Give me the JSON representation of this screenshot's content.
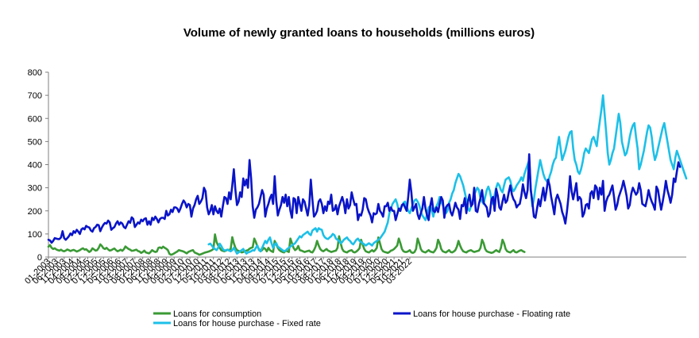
{
  "chart_data": {
    "type": "line",
    "title": "Volume of newly granted loans to households (millions euros)",
    "xlabel": "",
    "ylabel": "",
    "ylim": [
      0,
      800
    ],
    "yticks": [
      0,
      100,
      200,
      300,
      400,
      500,
      600,
      700,
      800
    ],
    "grid": false,
    "legend_position": "bottom",
    "x_tick_labels": [
      "01-2003",
      "06-2003",
      "11-2003",
      "04-2004",
      "09-2004",
      "02-2005",
      "07-2005",
      "12-2005",
      "05-2006",
      "10-2006",
      "03-2007",
      "08-2007",
      "01-2008",
      "06-2008",
      "11-2008",
      "04-2009",
      "09-2009",
      "02-2010",
      "07-2010",
      "12-2010",
      "05-2011",
      "10-2011",
      "03-2012",
      "08-2012",
      "01-2013",
      "06-2013",
      "11-2013",
      "04-2014",
      "09-2014",
      "02-2015",
      "07-2015",
      "12-2015",
      "05-2016",
      "10-2016",
      "03-2017",
      "08-2017",
      "01-2018",
      "06-2018",
      "11-2018",
      "04-2019",
      "09-2019",
      "02-2020",
      "07-2020",
      "12-2020",
      "05-2021",
      "10-2021",
      "03-2022"
    ],
    "series": [
      {
        "name": "Loans for consumption",
        "color": "#3a9a35",
        "start": 0,
        "values": [
          45,
          52,
          40,
          35,
          38,
          33,
          30,
          28,
          32,
          27,
          25,
          28,
          33,
          30,
          26,
          29,
          31,
          28,
          24,
          27,
          30,
          35,
          38,
          32,
          34,
          28,
          22,
          27,
          38,
          33,
          28,
          30,
          40,
          55,
          48,
          38,
          35,
          40,
          33,
          28,
          30,
          34,
          37,
          30,
          25,
          28,
          32,
          27,
          34,
          46,
          40,
          35,
          32,
          27,
          28,
          30,
          32,
          26,
          24,
          18,
          22,
          28,
          20,
          18,
          16,
          22,
          30,
          25,
          22,
          24,
          40,
          42,
          38,
          45,
          40,
          36,
          30,
          14,
          10,
          12,
          16,
          20,
          24,
          30,
          28,
          26,
          24,
          20,
          16,
          22,
          25,
          28,
          30,
          20,
          17,
          14,
          10,
          12,
          15,
          18,
          20,
          22,
          24,
          27,
          30,
          35,
          98,
          65,
          50,
          40,
          30,
          27,
          25,
          28,
          32,
          30,
          35,
          86,
          60,
          40,
          30,
          27,
          24,
          20,
          22,
          25,
          28,
          30,
          36,
          40,
          42,
          80,
          65,
          45,
          35,
          25,
          30,
          40,
          35,
          25,
          40,
          30,
          25,
          22,
          70,
          55,
          40,
          30,
          25,
          22,
          20,
          28,
          25,
          22,
          80,
          60,
          40,
          30,
          35,
          48,
          30,
          28,
          25,
          22,
          24,
          26,
          28,
          22,
          20,
          30,
          45,
          70,
          50,
          35,
          28,
          25,
          30,
          35,
          28,
          25,
          22,
          24,
          26,
          28,
          40,
          90,
          60,
          35,
          25,
          22,
          20,
          25,
          28,
          30,
          22,
          20,
          24,
          30,
          38,
          75,
          55,
          35,
          25,
          22,
          20,
          25,
          30,
          24,
          30,
          40,
          85,
          60,
          35,
          25,
          22,
          20,
          18,
          22,
          28,
          30,
          35,
          42,
          50,
          80,
          60,
          35,
          25,
          22,
          22,
          25,
          30,
          20,
          18,
          22,
          35,
          80,
          60,
          35,
          25,
          22,
          20,
          25,
          30,
          24,
          22,
          20,
          28,
          40,
          75,
          60,
          35,
          25,
          22,
          20,
          25,
          30,
          22,
          20,
          24,
          30,
          45,
          70,
          50,
          35,
          25,
          22,
          20,
          25,
          28,
          30,
          25,
          22,
          24,
          26,
          28,
          40,
          75,
          60,
          35,
          25,
          22,
          20,
          18,
          20,
          25,
          30,
          25,
          22,
          40,
          75,
          60,
          35,
          25,
          22,
          20,
          25,
          30,
          22,
          20,
          24,
          28,
          30,
          25,
          22
        ]
      },
      {
        "name": "Loans for house purchase - Floating rate",
        "color": "#0a14c8",
        "start": 0,
        "values": [
          75,
          72,
          62,
          70,
          82,
          80,
          78,
          78,
          85,
          112,
          82,
          75,
          82,
          90,
          102,
          95,
          112,
          105,
          118,
          110,
          100,
          120,
          125,
          120,
          135,
          130,
          128,
          115,
          110,
          125,
          130,
          140,
          138,
          112,
          128,
          140,
          148,
          145,
          158,
          150,
          118,
          125,
          130,
          145,
          155,
          140,
          150,
          145,
          130,
          125,
          140,
          155,
          148,
          172,
          165,
          130,
          140,
          150,
          145,
          162,
          155,
          165,
          168,
          140,
          155,
          140,
          170,
          160,
          175,
          165,
          150,
          165,
          170,
          170,
          165,
          200,
          180,
          185,
          205,
          195,
          215,
          215,
          210,
          195,
          210,
          230,
          245,
          235,
          215,
          230,
          225,
          175,
          210,
          225,
          250,
          265,
          230,
          240,
          255,
          300,
          285,
          215,
          185,
          200,
          225,
          185,
          220,
          200,
          190,
          210,
          175,
          220,
          260,
          255,
          230,
          280,
          250,
          310,
          380,
          290,
          225,
          240,
          280,
          260,
          340,
          310,
          335,
          300,
          420,
          340,
          220,
          170,
          205,
          215,
          230,
          260,
          290,
          270,
          175,
          210,
          230,
          255,
          270,
          230,
          350,
          245,
          180,
          205,
          225,
          260,
          235,
          270,
          220,
          260,
          200,
          170,
          255,
          250,
          190,
          260,
          230,
          200,
          250,
          240,
          210,
          180,
          225,
          335,
          250,
          175,
          185,
          200,
          240,
          250,
          230,
          190,
          220,
          200,
          240,
          230,
          270,
          200,
          205,
          225,
          185,
          220,
          240,
          260,
          235,
          190,
          250,
          210,
          225,
          280,
          250,
          225,
          230,
          160,
          185,
          180,
          205,
          255,
          250,
          215,
          195,
          180,
          150,
          190,
          185,
          190,
          230,
          200,
          190,
          175,
          220,
          220,
          235,
          200,
          215,
          200,
          200,
          160,
          185,
          210,
          200,
          225,
          230,
          215,
          200,
          260,
          335,
          280,
          200,
          215,
          230,
          185,
          165,
          190,
          210,
          260,
          210,
          180,
          160,
          220,
          255,
          200,
          195,
          215,
          195,
          230,
          260,
          245,
          170,
          215,
          225,
          230,
          195,
          180,
          205,
          235,
          215,
          205,
          165,
          225,
          220,
          255,
          190,
          240,
          270,
          220,
          230,
          300,
          200,
          195,
          230,
          255,
          290,
          235,
          225,
          215,
          175,
          190,
          250,
          260,
          200,
          295,
          265,
          215,
          205,
          240,
          270,
          235,
          245,
          280,
          310,
          270,
          250,
          240,
          215,
          225,
          230,
          265,
          315,
          280,
          255,
          290,
          445,
          290,
          240,
          175,
          170,
          210,
          250,
          220,
          260,
          300,
          245,
          285,
          335,
          310,
          260,
          225,
          185,
          250,
          270,
          250,
          230,
          195,
          175,
          145,
          195,
          260,
          350,
          285,
          250,
          285,
          320,
          245,
          260,
          250,
          175,
          190,
          225,
          230,
          210,
          275,
          285,
          255,
          310,
          300,
          250,
          300,
          270,
          330,
          200,
          240,
          260,
          270,
          290,
          310,
          260,
          205,
          225,
          260,
          280,
          300,
          330,
          300,
          265,
          210,
          225,
          275,
          300,
          285,
          270,
          280,
          320,
          290,
          230,
          225,
          220,
          250,
          290,
          260,
          240,
          225,
          205,
          305,
          290,
          245,
          205,
          240,
          280,
          330,
          290,
          265,
          235,
          270,
          340,
          325,
          370,
          410,
          390
        ]
      },
      {
        "name": "Loans for house purchase - Fixed rate",
        "color": "#1cc0e8",
        "start": 102,
        "values": [
          55,
          58,
          50,
          40,
          35,
          30,
          40,
          58,
          48,
          35,
          28,
          30,
          32,
          28,
          25,
          30,
          40,
          28,
          15,
          20,
          25,
          30,
          35,
          25,
          15,
          20,
          22,
          25,
          30,
          28,
          40,
          50,
          30,
          25,
          40,
          55,
          70,
          60,
          75,
          85,
          60,
          40,
          55,
          60,
          45,
          40,
          35,
          30,
          25,
          28,
          35,
          40,
          45,
          50,
          55,
          60,
          70,
          80,
          90,
          85,
          95,
          100,
          105,
          110,
          100,
          95,
          115,
          120,
          125,
          110,
          125,
          120,
          118,
          95,
          85,
          80,
          78,
          85,
          90,
          100,
          95,
          80,
          75,
          70,
          60,
          65,
          75,
          80,
          85,
          75,
          70,
          60,
          55,
          65,
          75,
          80,
          70,
          65,
          60,
          55,
          50,
          55,
          60,
          55,
          50,
          60,
          65,
          70,
          75,
          80,
          90,
          100,
          110,
          130,
          150,
          190,
          210,
          230,
          240,
          250,
          230,
          200,
          210,
          220,
          235,
          240,
          220,
          200,
          190,
          210,
          230,
          245,
          250,
          240,
          225,
          200,
          180,
          170,
          160,
          185,
          215,
          220,
          200,
          175,
          210,
          220,
          235,
          260,
          240,
          225,
          205,
          190,
          200,
          235,
          250,
          275,
          290,
          320,
          340,
          360,
          350,
          330,
          310,
          280,
          250,
          210,
          200,
          220,
          245,
          270,
          285,
          300,
          290,
          255,
          240,
          230,
          260,
          290,
          305,
          285,
          250,
          230,
          270,
          300,
          320,
          310,
          290,
          280,
          310,
          335,
          340,
          345,
          330,
          300,
          285,
          295,
          310,
          320,
          330,
          345,
          330,
          360,
          380,
          400,
          420,
          300,
          220,
          250,
          300,
          340,
          380,
          420,
          390,
          360,
          340,
          330,
          320,
          350,
          370,
          400,
          420,
          430,
          480,
          520,
          470,
          420,
          440,
          460,
          490,
          520,
          540,
          545,
          470,
          420,
          400,
          370,
          360,
          380,
          410,
          450,
          470,
          460,
          450,
          480,
          510,
          520,
          500,
          480,
          540,
          590,
          640,
          700,
          620,
          540,
          450,
          400,
          420,
          450,
          470,
          520,
          570,
          620,
          580,
          500,
          470,
          440,
          450,
          480,
          520,
          550,
          570,
          580,
          520,
          470,
          380,
          400,
          430,
          460,
          500,
          540,
          570,
          560,
          520,
          460,
          420,
          440,
          470,
          500,
          530,
          560,
          580,
          540,
          500,
          460,
          420,
          400,
          380,
          430,
          460,
          440,
          420,
          400,
          380,
          360,
          340
        ]
      }
    ]
  }
}
